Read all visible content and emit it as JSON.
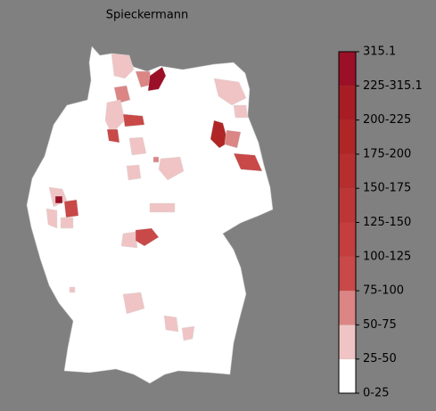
{
  "title": "Spieckermann",
  "legend": {
    "labels": [
      "0-25",
      "25-50",
      "50-75",
      "75-100",
      "100-125",
      "125-150",
      "150-175",
      "175-200",
      "200-225",
      "225-315.1",
      "315.1"
    ],
    "colors": [
      "#ffffff",
      "#f0c4c4",
      "#dc8585",
      "#c94848",
      "#c43e3e",
      "#bd3636",
      "#b72e2e",
      "#b02626",
      "#a81d24",
      "#9b1027"
    ]
  }
}
